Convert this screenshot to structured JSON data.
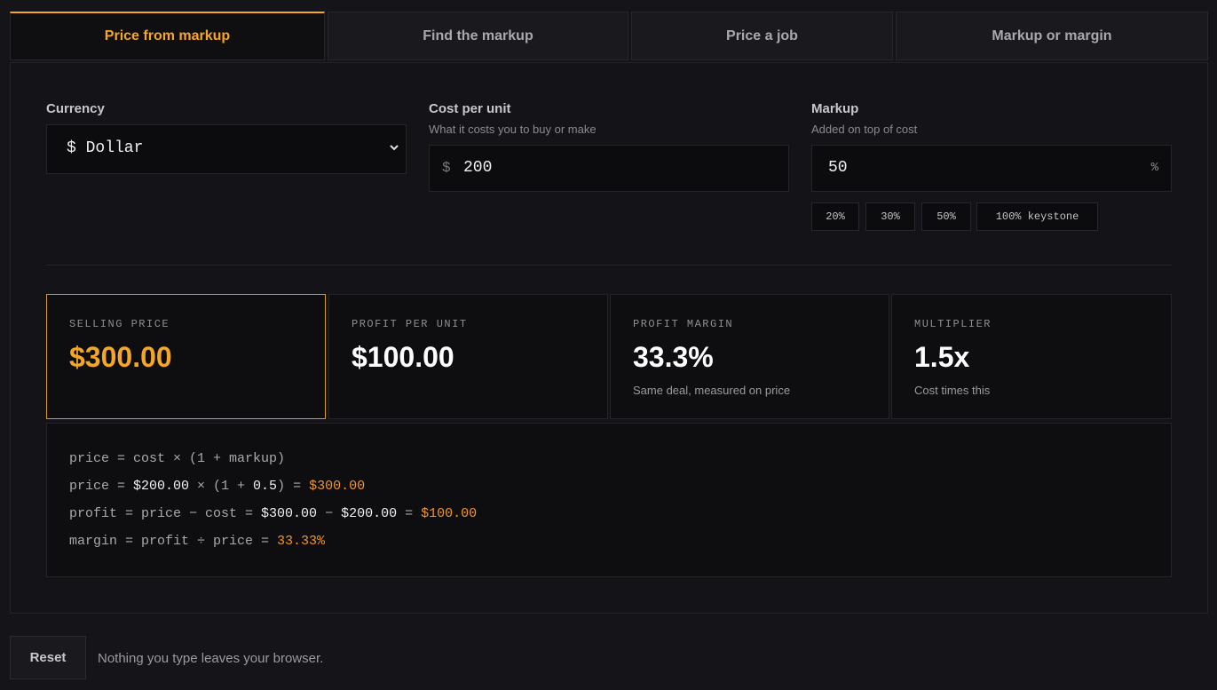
{
  "tabs": [
    {
      "label": "Price from markup",
      "active": true
    },
    {
      "label": "Find the markup",
      "active": false
    },
    {
      "label": "Price a job",
      "active": false
    },
    {
      "label": "Markup or margin",
      "active": false
    }
  ],
  "currency": {
    "label": "Currency",
    "selected": "$ Dollar"
  },
  "cost": {
    "label": "Cost per unit",
    "sublabel": "What it costs you to buy or make",
    "prefix": "$",
    "value": "200"
  },
  "markup": {
    "label": "Markup",
    "sublabel": "Added on top of cost",
    "value": "50",
    "suffix": "%",
    "presets": [
      "20%",
      "30%",
      "50%",
      "100% keystone"
    ]
  },
  "results": {
    "selling_price": {
      "label": "SELLING PRICE",
      "value": "$300.00"
    },
    "profit_per_unit": {
      "label": "PROFIT PER UNIT",
      "value": "$100.00"
    },
    "profit_margin": {
      "label": "PROFIT MARGIN",
      "value": "33.3%",
      "note": "Same deal, measured on price"
    },
    "multiplier": {
      "label": "MULTIPLIER",
      "value": "1.5x",
      "note": "Cost times this"
    }
  },
  "formula": {
    "line1": "price = cost × (1 + markup)",
    "line2": {
      "a": "price = ",
      "b": "$200.00",
      "c": " × (1 + ",
      "d": "0.5",
      "e": ") = ",
      "f": "$300.00"
    },
    "line3": {
      "a": "profit = price − cost = ",
      "b": "$300.00",
      "c": " − ",
      "d": "$200.00",
      "e": " = ",
      "f": "$100.00"
    },
    "line4": {
      "a": "margin = profit ÷ price = ",
      "f": "33.33%"
    }
  },
  "footer": {
    "reset_label": "Reset",
    "privacy_note": "Nothing you type leaves your browser."
  },
  "colors": {
    "accent": "#f5a623",
    "background": "#151519"
  }
}
